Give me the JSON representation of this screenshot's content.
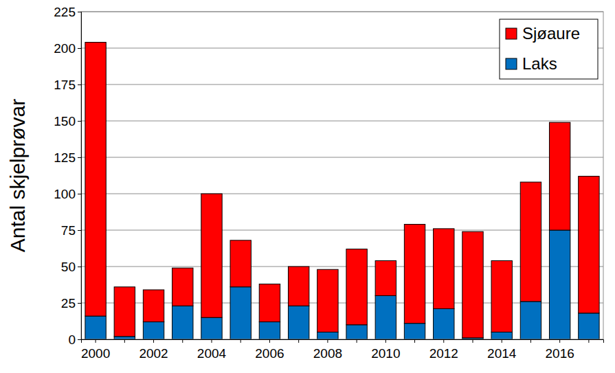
{
  "chart_data": {
    "type": "bar",
    "stacked": true,
    "y_label": "Antal skjelprøvar",
    "categories": [
      "2000",
      null,
      "2002",
      null,
      "2004",
      null,
      "2006",
      null,
      "2008",
      null,
      "2010",
      null,
      "2012",
      null,
      "2014",
      null,
      "2016",
      null
    ],
    "series": [
      {
        "name": "Laks",
        "color": "#0070c0",
        "values": [
          16,
          2,
          12,
          23,
          15,
          36,
          12,
          23,
          5,
          10,
          30,
          11,
          21,
          1,
          5,
          26,
          75,
          18
        ]
      },
      {
        "name": "Sjøaure",
        "color": "#ff0000",
        "values": [
          188,
          34,
          22,
          26,
          85,
          32,
          26,
          27,
          43,
          52,
          24,
          68,
          55,
          73,
          49,
          82,
          74,
          94
        ]
      }
    ],
    "ylim": [
      0,
      225
    ],
    "yticks": [
      0,
      25,
      50,
      75,
      100,
      125,
      150,
      175,
      200,
      225
    ],
    "grid": true,
    "legend": "upper right"
  }
}
